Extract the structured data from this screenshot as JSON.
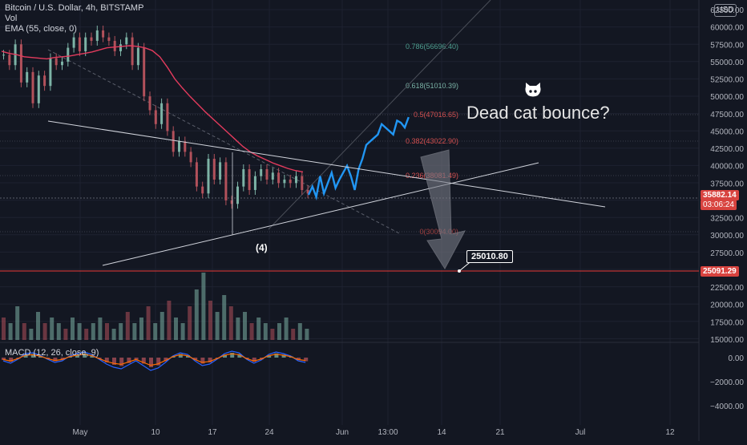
{
  "header": {
    "title": "Bitcoin / U.S. Dollar, 4h, BITSTAMP",
    "vol_label": "Vol",
    "ema_label": "EMA (55, close, 0)",
    "macd_label": "MACD (12, 26, close, 9)",
    "currency": "USD"
  },
  "price_tags": {
    "current_price": "35882.14",
    "countdown": "03:06:24",
    "target_line": "25091.29",
    "target_callout": "25010.80"
  },
  "annotations": {
    "wave_label": "(4)",
    "bounce_text": "Dead cat bounce?",
    "bounce_icon": "cat-face-icon"
  },
  "colors": {
    "background": "#131722",
    "candles_down": "#b2515b",
    "candles_up": "#7db3a6",
    "projection": "#2196f3",
    "ema": "#e33b5d",
    "target_line": "#e53935",
    "fib_0786": "#4e9e8f",
    "fib_0618": "#7ab3a6",
    "fib_05": "#d45050",
    "fib_0382": "#d45050",
    "fib_0236": "#d45050",
    "fib_0": "#a04040"
  },
  "chart_data": [
    {
      "type": "line",
      "name": "price",
      "yaxis_ticks": [
        "62500.00",
        "60000.00",
        "57500.00",
        "55000.00",
        "52500.00",
        "50000.00",
        "47500.00",
        "45000.00",
        "42500.00",
        "40000.00",
        "37500.00",
        "32500.00",
        "30000.00",
        "27500.00",
        "22500.00",
        "20000.00",
        "17500.00",
        "15000.00"
      ],
      "xaxis_ticks": [
        "May",
        "10",
        "17",
        "24",
        "Jun",
        "13:00",
        "14",
        "21",
        "Jul",
        "12"
      ],
      "ylim": [
        15000,
        63000
      ],
      "fib_levels": [
        {
          "label": "0.786(56696.40)",
          "ratio": 0.786,
          "price": 56696.4
        },
        {
          "label": "0.618(51010.39)",
          "ratio": 0.618,
          "price": 51010.39
        },
        {
          "label": "0.5(47016.65)",
          "ratio": 0.5,
          "price": 47016.65
        },
        {
          "label": "0.382(43022.90)",
          "ratio": 0.382,
          "price": 43022.9
        },
        {
          "label": "0.236(38081.49)",
          "ratio": 0.236,
          "price": 38081.49
        },
        {
          "label": "0(30094.00)",
          "ratio": 0,
          "price": 30094.0
        }
      ],
      "history_closes": [
        56000,
        54500,
        57500,
        52000,
        53500,
        49000,
        53000,
        51500,
        55500,
        54500,
        55000,
        57000,
        58500,
        56500,
        58500,
        58000,
        59500,
        58500,
        58000,
        56500,
        57500,
        58500,
        54500,
        57000,
        50000,
        48000,
        46000,
        49000,
        45000,
        42000,
        43500,
        42000,
        40500,
        37000,
        36000,
        41000,
        38000,
        40500,
        35000,
        34500,
        37000,
        39500,
        36500,
        38500,
        39500,
        38000,
        39000,
        37500,
        38000,
        37500,
        38500,
        36500,
        36000
      ],
      "projection": [
        35800,
        37000,
        35500,
        38500,
        36000,
        37500,
        39000,
        36800,
        38000,
        39000,
        40000,
        38500,
        36500,
        39500,
        41000,
        43000,
        43500,
        44000,
        44500,
        46000,
        45500,
        45000,
        44500,
        46500,
        46200,
        45500,
        47000
      ],
      "ema_values": [
        56500,
        56200,
        56000,
        55700,
        55600,
        55500,
        55400,
        55600,
        55700,
        55800,
        56000,
        56200,
        56400,
        56700,
        57000,
        57100,
        57200,
        57300,
        57200,
        57000,
        56600,
        55700,
        54200,
        52500,
        51200,
        50000,
        48900,
        47800,
        46800,
        45800,
        44800,
        43800,
        42800,
        42000,
        41400,
        40900,
        40400,
        40000,
        39600,
        39300,
        39100
      ],
      "volume": [
        4,
        3,
        6,
        3,
        2,
        5,
        3,
        4,
        3,
        2,
        4,
        3,
        2,
        3,
        4,
        3,
        2,
        3,
        5,
        3,
        4,
        6,
        3,
        5,
        7,
        4,
        3,
        6,
        9,
        12,
        7,
        5,
        8,
        6,
        4,
        5,
        3,
        4,
        3,
        2,
        3,
        4,
        2,
        3,
        2
      ],
      "macd_hist": [
        -200,
        -350,
        -100,
        250,
        300,
        150,
        -100,
        -300,
        -200,
        100,
        250,
        350,
        200,
        -100,
        -400,
        -600,
        -700,
        -450,
        -200,
        -500,
        -800,
        -650,
        -300,
        100,
        300,
        200,
        -200,
        -500,
        -400,
        -100,
        250,
        400,
        300,
        -100,
        -350,
        -150,
        200,
        350,
        250,
        100,
        -200,
        -300
      ],
      "target": 25091.29
    }
  ]
}
